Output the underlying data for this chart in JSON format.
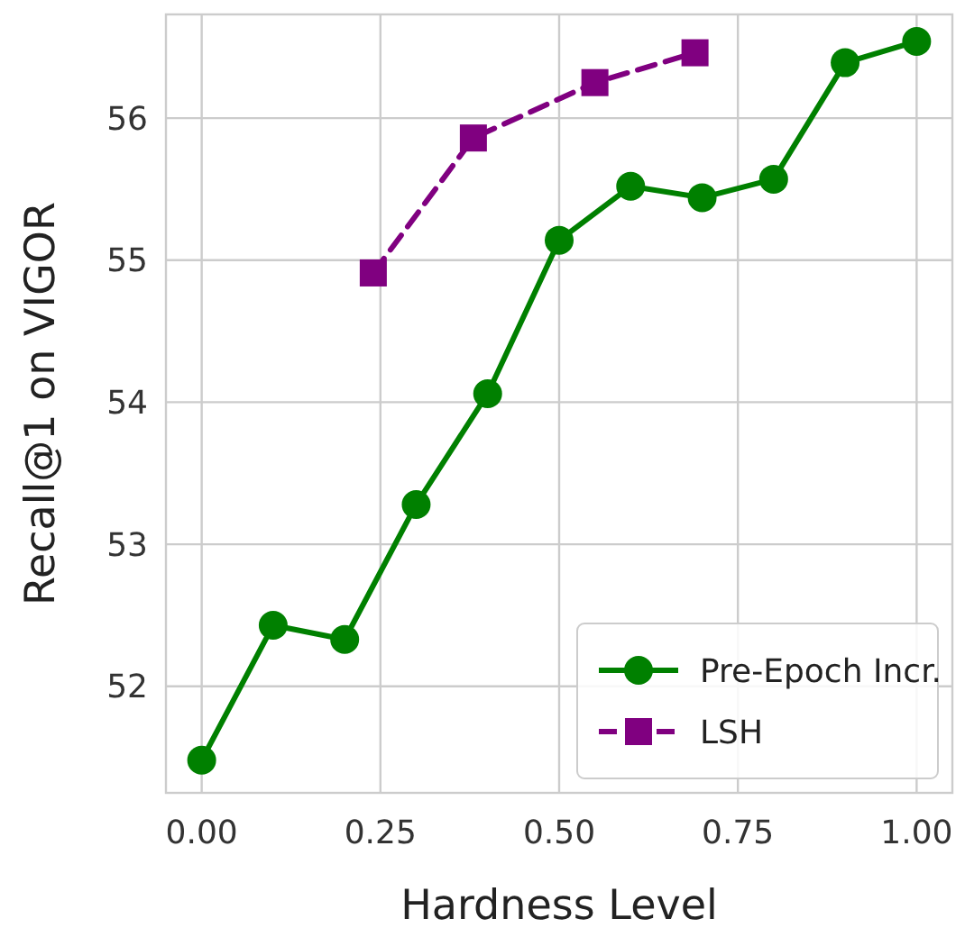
{
  "chart_data": {
    "type": "line",
    "xlabel": "Hardness Level",
    "ylabel": "Recall@1 on VIGOR",
    "xlim": [
      -0.05,
      1.05
    ],
    "ylim": [
      51.25,
      56.73
    ],
    "xticks": [
      {
        "value": 0,
        "label": "0.00"
      },
      {
        "value": 0.25,
        "label": "0.25"
      },
      {
        "value": 0.5,
        "label": "0.50"
      },
      {
        "value": 0.75,
        "label": "0.75"
      },
      {
        "value": 1,
        "label": "1.00"
      }
    ],
    "yticks": [
      52,
      53,
      54,
      55,
      56
    ],
    "grid": true,
    "legend": "bottom right",
    "series": [
      {
        "name": "Pre-Epoch Incr.",
        "color": "#008000",
        "marker": "circle",
        "line_style": "solid",
        "x": [
          0,
          0.1,
          0.2,
          0.3,
          0.4,
          0.5,
          0.6,
          0.7,
          0.8,
          0.9,
          1.0
        ],
        "values": [
          51.48,
          52.43,
          52.33,
          53.28,
          54.06,
          55.14,
          55.52,
          55.44,
          55.57,
          56.39,
          56.54
        ]
      },
      {
        "name": "LSH",
        "color": "#800080",
        "marker": "square",
        "line_style": "dashed",
        "x": [
          0.24,
          0.38,
          0.55,
          0.69
        ],
        "values": [
          54.91,
          55.86,
          56.25,
          56.46
        ]
      }
    ]
  }
}
